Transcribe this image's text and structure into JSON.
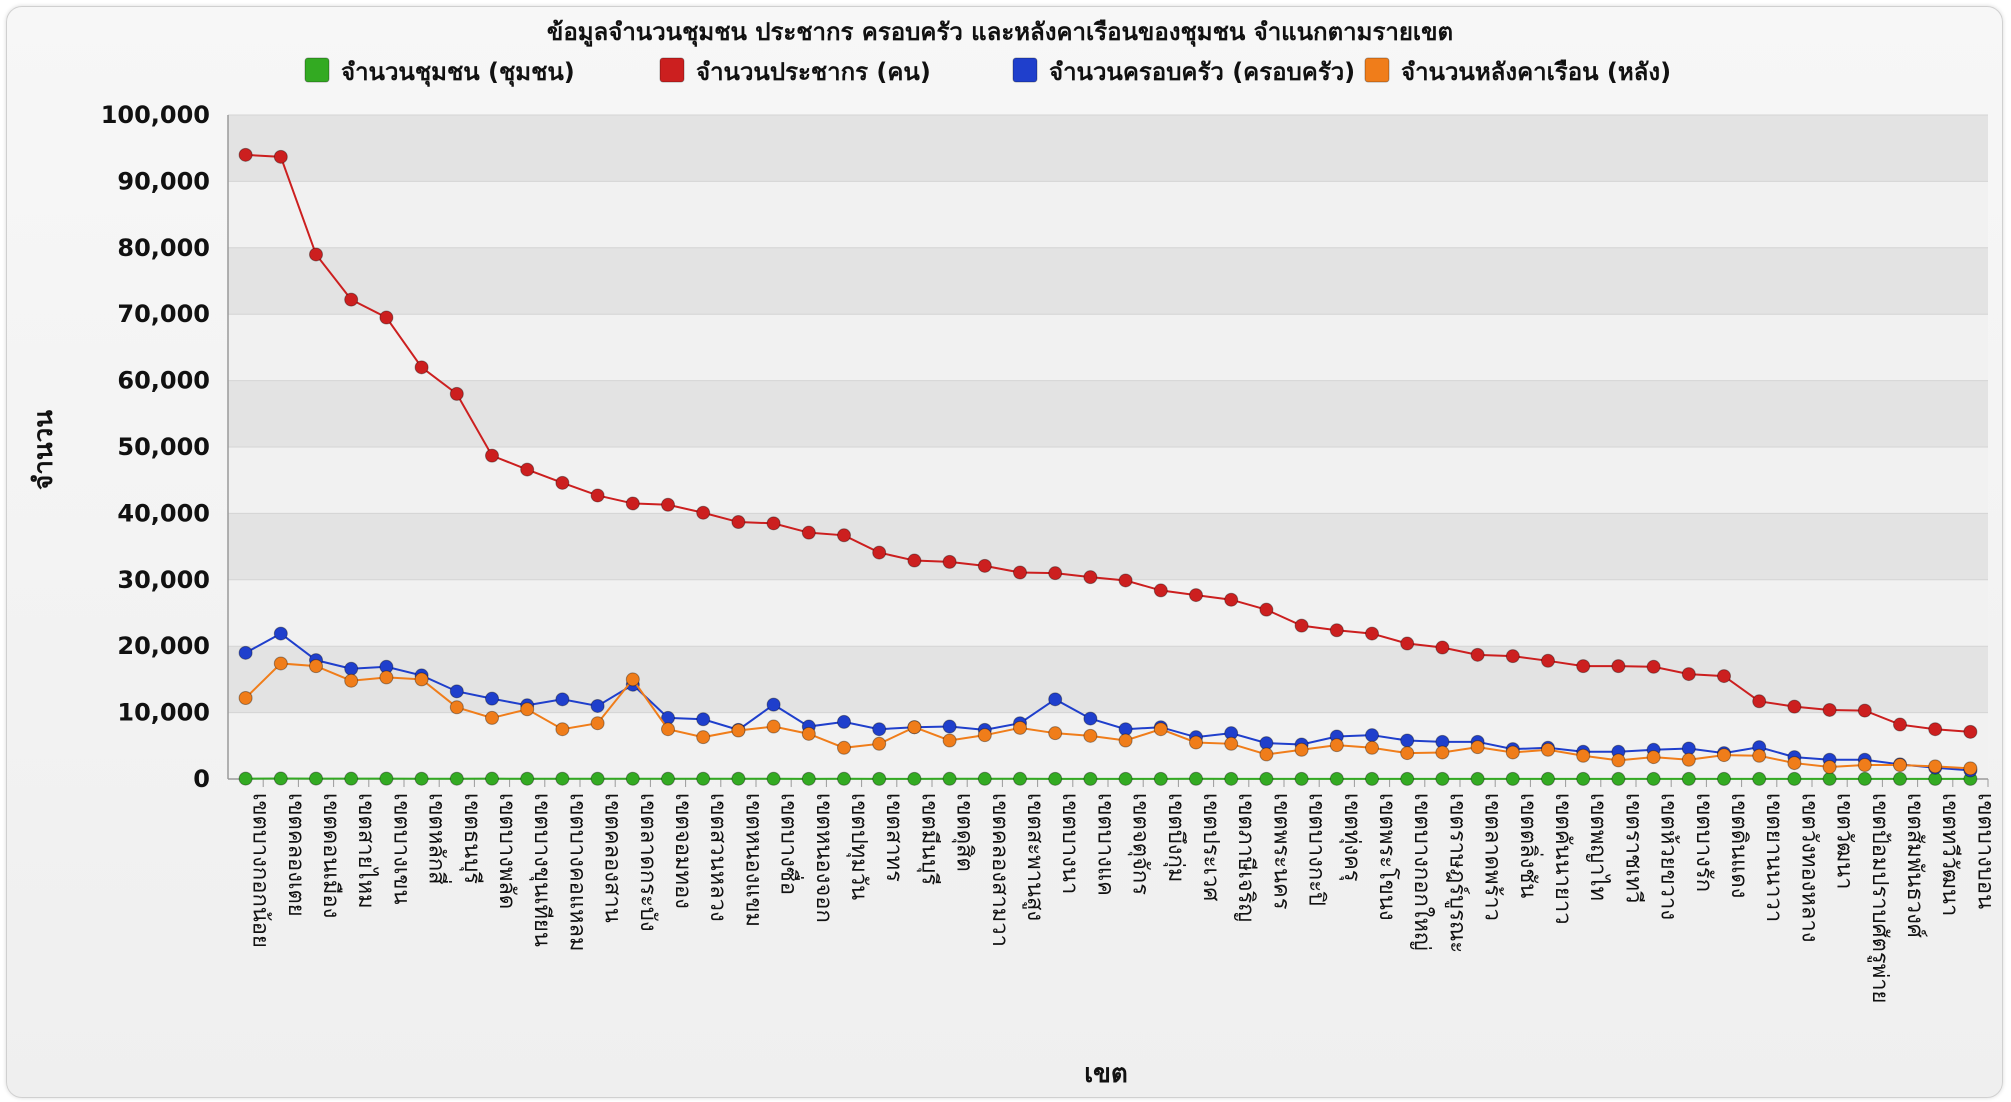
{
  "chart_data": {
    "type": "line",
    "title": "ข้อมูลจำนวนชุมชน ประชากร ครอบครัว และหลังคาเรือนของชุมชน จำแนกตามรายเขต",
    "xlabel": "เขต",
    "ylabel": "จำนวน",
    "ylim": [
      0,
      100000
    ],
    "y_ticks": [
      "0",
      "10,000",
      "20,000",
      "30,000",
      "40,000",
      "50,000",
      "60,000",
      "70,000",
      "80,000",
      "90,000",
      "100,000"
    ],
    "grid": true,
    "legend_position": "top",
    "categories": [
      "เขตบางกอกน้อย",
      "เขตคลองเตย",
      "เขตดอนเมือง",
      "เขตสายไหม",
      "เขตบางเขน",
      "เขตหลักสี่",
      "เขตธนบุรี",
      "เขตบางพลัด",
      "เขตบางขุนเทียน",
      "เขตบางคอแหลม",
      "เขตคลองสาน",
      "เขตลาดกระบัง",
      "เขตจอมทอง",
      "เขตสวนหลวง",
      "เขตหนองแขม",
      "เขตบางซื่อ",
      "เขตหนองจอก",
      "เขตปทุมวัน",
      "เขตสาทร",
      "เขตมีนบุรี",
      "เขตดุสิต",
      "เขตคลองสามวา",
      "เขตสะพานสูง",
      "เขตบางนา",
      "เขตบางแค",
      "เขตจตุจักร",
      "เขตบึงกุ่ม",
      "เขตประเวศ",
      "เขตภาษีเจริญ",
      "เขตพระนคร",
      "เขตบางกะปิ",
      "เขตทุ่งครุ",
      "เขตพระโขนง",
      "เขตบางกอกใหญ่",
      "เขตราษฎร์บูรณะ",
      "เขตลาดพร้าว",
      "เขตตลิ่งชัน",
      "เขตคันนายาว",
      "เขตพญาไท",
      "เขตราชเทวี",
      "เขตห้วยขวาง",
      "เขตบางรัก",
      "เขตดินแดง",
      "เขตยานนาวา",
      "เขตวังทองหลาง",
      "เขตวัฒนา",
      "เขตป้อมปราบศัตรูพ่าย",
      "เขตสัมพันธวงศ์",
      "เขตทวีวัฒนา",
      "เขตบางบอน"
    ],
    "series": [
      {
        "name": "จำนวนชุมชน (ชุมชน)",
        "color": "#33aa22",
        "values": [
          60,
          70,
          65,
          50,
          55,
          40,
          45,
          50,
          40,
          45,
          35,
          40,
          30,
          35,
          40,
          30,
          25,
          30,
          20,
          25,
          30,
          35,
          30,
          25,
          20,
          25,
          20,
          30,
          25,
          20,
          20,
          25,
          20,
          15,
          20,
          15,
          20,
          15,
          15,
          10,
          15,
          10,
          15,
          10,
          15,
          10,
          10,
          10,
          10,
          10
        ]
      },
      {
        "name": "จำนวนประชากร (คน)",
        "color": "#cc1f1f",
        "values": [
          94000,
          93700,
          79000,
          72200,
          69500,
          62000,
          58000,
          48700,
          46600,
          44600,
          42700,
          41500,
          41300,
          40100,
          38700,
          38500,
          37100,
          36700,
          34100,
          32900,
          32700,
          32100,
          31100,
          31000,
          30400,
          29900,
          28400,
          27700,
          27000,
          25500,
          23100,
          22400,
          21900,
          20400,
          19800,
          18700,
          18500,
          17800,
          17000,
          17000,
          16900,
          15800,
          15500,
          11700,
          10900,
          10400,
          10300,
          8200,
          7500,
          7100
        ]
      },
      {
        "name": "จำนวนครอบครัว (ครอบครัว)",
        "color": "#1f3fcc",
        "values": [
          19000,
          21900,
          17900,
          16600,
          16900,
          15600,
          13200,
          12100,
          11100,
          12000,
          11000,
          14200,
          9200,
          9000,
          7400,
          11200,
          7900,
          8600,
          7500,
          7800,
          7900,
          7400,
          8400,
          12000,
          9100,
          7500,
          7800,
          6300,
          6900,
          5400,
          5200,
          6400,
          6600,
          5800,
          5600,
          5600,
          4500,
          4700,
          4100,
          4100,
          4400,
          4600,
          3900,
          4800,
          3300,
          2900,
          2900,
          2200,
          1700,
          1300
        ]
      },
      {
        "name": "จำนวนหลังคาเรือน (หลัง)",
        "color": "#f07d1a",
        "values": [
          12200,
          17400,
          17000,
          14800,
          15300,
          15000,
          10800,
          9200,
          10500,
          7500,
          8400,
          15000,
          7500,
          6300,
          7300,
          7900,
          6800,
          4700,
          5300,
          7800,
          5800,
          6600,
          7700,
          6900,
          6500,
          5800,
          7500,
          5500,
          5300,
          3700,
          4400,
          5100,
          4700,
          3900,
          4000,
          4800,
          4000,
          4400,
          3500,
          2800,
          3300,
          2900,
          3600,
          3500,
          2400,
          1800,
          2100,
          2100,
          1900,
          1600
        ]
      }
    ]
  }
}
